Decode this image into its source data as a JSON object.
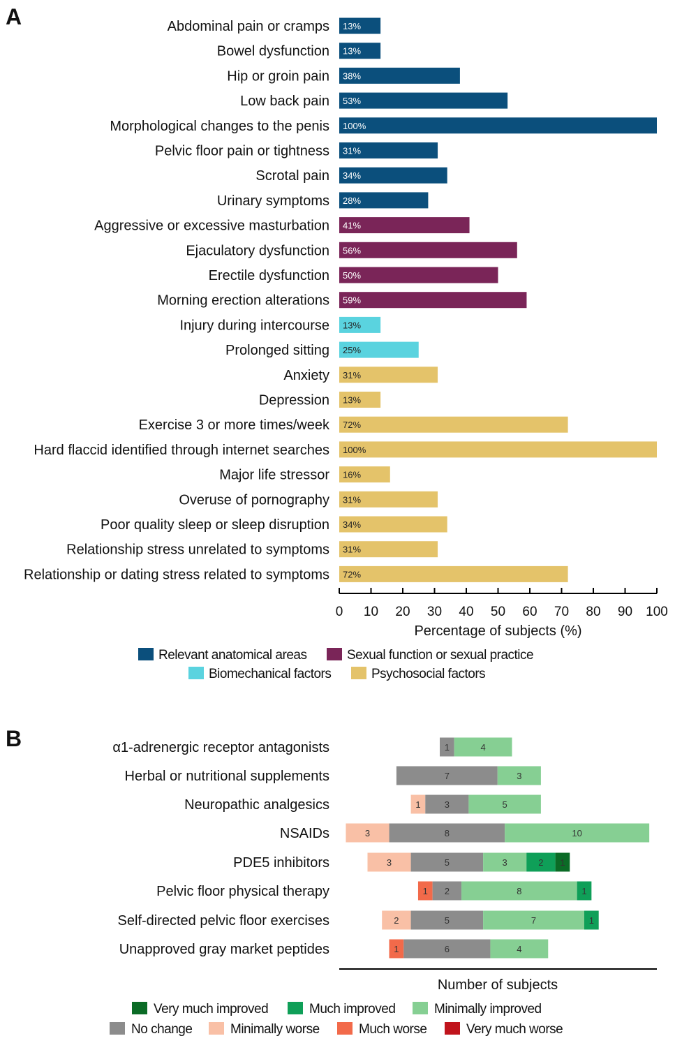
{
  "panel_a_letter": "A",
  "panel_b_letter": "B",
  "chart_data": [
    {
      "type": "bar",
      "orientation": "horizontal",
      "xlabel": "Percentage of subjects (%)",
      "xlim": [
        0,
        100
      ],
      "ticks": [
        0,
        10,
        20,
        30,
        40,
        50,
        60,
        70,
        80,
        90,
        100
      ],
      "legend": [
        {
          "name": "Relevant anatomical areas",
          "color": "#0b4f7c"
        },
        {
          "name": "Sexual function or sexual practice",
          "color": "#7a2558"
        },
        {
          "name": "Biomechanical factors",
          "color": "#5ad3df"
        },
        {
          "name": "Psychosocial factors",
          "color": "#e4c36a"
        }
      ],
      "categories": [
        {
          "label": "Abdominal pain or cramps",
          "value": 13,
          "text": "13%",
          "group": 0
        },
        {
          "label": "Bowel dysfunction",
          "value": 13,
          "text": "13%",
          "group": 0
        },
        {
          "label": "Hip or groin pain",
          "value": 38,
          "text": "38%",
          "group": 0
        },
        {
          "label": "Low back pain",
          "value": 53,
          "text": "53%",
          "group": 0
        },
        {
          "label": "Morphological changes to the penis",
          "value": 100,
          "text": "100%",
          "group": 0
        },
        {
          "label": "Pelvic floor pain or tightness",
          "value": 31,
          "text": "31%",
          "group": 0
        },
        {
          "label": "Scrotal pain",
          "value": 34,
          "text": "34%",
          "group": 0
        },
        {
          "label": "Urinary symptoms",
          "value": 28,
          "text": "28%",
          "group": 0
        },
        {
          "label": "Aggressive or excessive masturbation",
          "value": 41,
          "text": "41%",
          "group": 1
        },
        {
          "label": "Ejaculatory dysfunction",
          "value": 56,
          "text": "56%",
          "group": 1
        },
        {
          "label": "Erectile dysfunction",
          "value": 50,
          "text": "50%",
          "group": 1
        },
        {
          "label": "Morning erection alterations",
          "value": 59,
          "text": "59%",
          "group": 1
        },
        {
          "label": "Injury during intercourse",
          "value": 13,
          "text": "13%",
          "group": 2
        },
        {
          "label": "Prolonged sitting",
          "value": 25,
          "text": "25%",
          "group": 2
        },
        {
          "label": "Anxiety",
          "value": 31,
          "text": "31%",
          "group": 3
        },
        {
          "label": "Depression",
          "value": 13,
          "text": "13%",
          "group": 3
        },
        {
          "label": "Exercise 3 or more times/week",
          "value": 72,
          "text": "72%",
          "group": 3
        },
        {
          "label": "Hard flaccid identified through internet searches",
          "value": 100,
          "text": "100%",
          "group": 3
        },
        {
          "label": "Major life stressor",
          "value": 16,
          "text": "16%",
          "group": 3
        },
        {
          "label": "Overuse of pornography",
          "value": 31,
          "text": "31%",
          "group": 3
        },
        {
          "label": "Poor quality sleep or sleep disruption",
          "value": 34,
          "text": "34%",
          "group": 3
        },
        {
          "label": "Relationship stress unrelated to symptoms",
          "value": 31,
          "text": "31%",
          "group": 3
        },
        {
          "label": "Relationship or dating stress related to symptoms",
          "value": 72,
          "text": "72%",
          "group": 3
        }
      ]
    },
    {
      "type": "bar",
      "orientation": "horizontal",
      "stacked": "diverging",
      "xlabel": "Number of subjects",
      "categories": [
        "α1-adrenergic receptor antagonists",
        "Herbal or nutritional supplements",
        "Neuropathic analgesics",
        "NSAIDs",
        "PDE5 inhibitors",
        "Pelvic floor physical therapy",
        "Self-directed pelvic floor exercises",
        "Unapproved gray market peptides"
      ],
      "series": [
        {
          "name": "Very much worse",
          "color": "#c0141c",
          "values": [
            0,
            0,
            0,
            0,
            0,
            0,
            0,
            0
          ]
        },
        {
          "name": "Much worse",
          "color": "#f26a4a",
          "values": [
            0,
            0,
            0,
            0,
            0,
            1,
            0,
            1
          ]
        },
        {
          "name": "Minimally worse",
          "color": "#f9c0a6",
          "values": [
            0,
            0,
            1,
            3,
            3,
            0,
            2,
            0
          ]
        },
        {
          "name": "No change",
          "color": "#8c8c8c",
          "values": [
            1,
            7,
            3,
            8,
            5,
            2,
            5,
            6
          ]
        },
        {
          "name": "Minimally improved",
          "color": "#86cf93",
          "values": [
            4,
            3,
            5,
            10,
            3,
            8,
            7,
            4
          ]
        },
        {
          "name": "Much improved",
          "color": "#0f9f58",
          "values": [
            0,
            0,
            0,
            0,
            2,
            1,
            1,
            0
          ]
        },
        {
          "name": "Very much improved",
          "color": "#0b6b26",
          "values": [
            0,
            0,
            0,
            0,
            1,
            0,
            0,
            0
          ]
        }
      ],
      "legend_rows": [
        [
          "Very much improved",
          "Much improved",
          "Minimally improved"
        ],
        [
          "No change",
          "Minimally worse",
          "Much worse",
          "Very much worse"
        ]
      ]
    }
  ]
}
